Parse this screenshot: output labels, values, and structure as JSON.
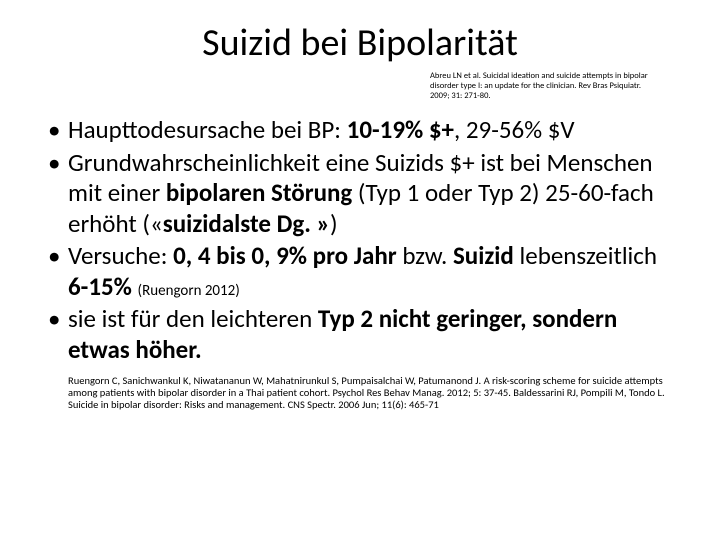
{
  "title": "Suizid bei Bipolarität",
  "top_citation": "Abreu LN et al. Suicidal ideation and suicide attempts in bipolar disorder type I: an update for the clinician. Rev Bras Psiquiatr. 2009; 31: 271-80.",
  "bullets": {
    "b1_pre": "Haupttodesursache bei BP: ",
    "b1_bold1": "10-19% $+",
    "b1_mid": ", 29-56% $V",
    "b2_pre": "Grundwahrscheinlichkeit eine Suizids $+ ist bei Menschen mit einer ",
    "b2_bold1": "bipolaren Störung",
    "b2_mid": " (Typ 1 oder Typ 2) 25-60-fach erhöht («",
    "b2_bold2": "suizidalste Dg. »",
    "b2_end": ")",
    "b3_pre": "Versuche: ",
    "b3_bold1": "0, 4 bis 0, 9% pro Jahr",
    "b3_mid": " bzw. ",
    "b3_bold2": "Suizid ",
    "b3_mid2": "lebenszeitlich ",
    "b3_bold3": "6-15% ",
    "b3_small": "(Ruengorn 2012)",
    "b4_pre": "sie ist für den leichteren ",
    "b4_bold1": "Typ 2 nicht geringer, sondern etwas höher."
  },
  "bottom_citation": "Ruengorn C, Sanichwankul K, Niwatananun W, Mahatnirunkul S, Pumpaisalchai W, Patumanond J. A risk-scoring scheme for suicide attempts among patients with bipolar disorder in a Thai patient cohort. Psychol Res Behav Manag. 2012; 5: 37-45. Baldessarini RJ, Pompili M, Tondo L. Suicide in bipolar disorder: Risks and management. CNS Spectr. 2006 Jun; 11(6): 465-71"
}
